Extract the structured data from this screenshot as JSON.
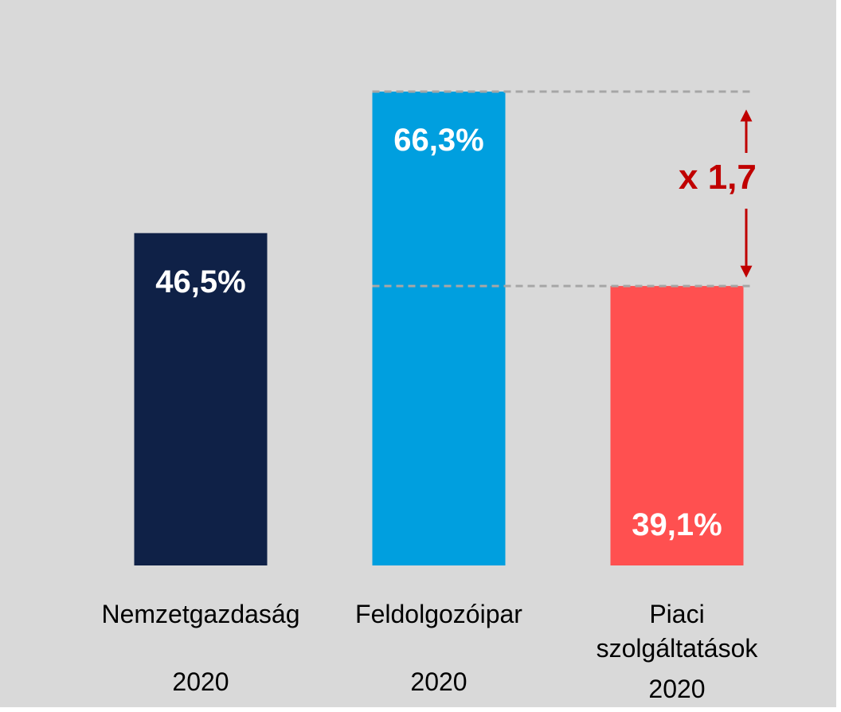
{
  "chart_data": {
    "type": "bar",
    "categories": [
      "Nemzetgazdaság",
      "Feldolgozóipar",
      "Piaci szolgáltatások"
    ],
    "sublabels": [
      "2020",
      "2020",
      "2020"
    ],
    "values": [
      46.5,
      66.3,
      39.1
    ],
    "value_labels": [
      "46,5%",
      "66,3%",
      "39,1%"
    ],
    "colors": [
      "#0f2147",
      "#009fdf",
      "#ff5050"
    ],
    "annotation": "x 1,7"
  }
}
